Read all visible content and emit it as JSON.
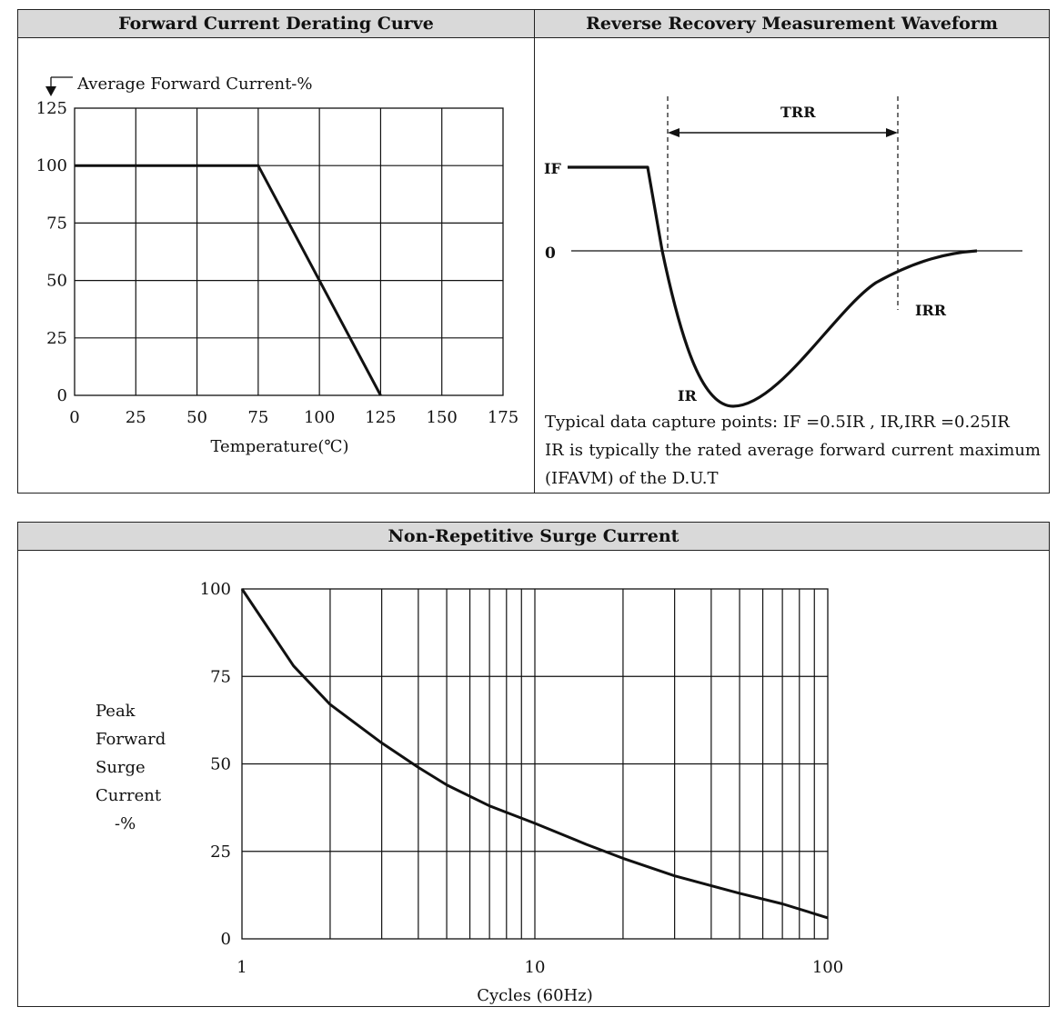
{
  "panels": {
    "derating": {
      "title": "Forward Current Derating Curve"
    },
    "waveform": {
      "title": "Reverse Recovery Measurement Waveform"
    },
    "surge": {
      "title": "Non-Repetitive Surge Current"
    }
  },
  "waveform": {
    "labels": {
      "trr": "TRR",
      "if": "IF",
      "zero": "0",
      "irr": "IRR",
      "ir": "IR"
    },
    "caption_lines": [
      "Typical data capture points: IF =0.5IR , IR,IRR =0.25IR",
      "IR is typically the rated average forward current maximum",
      "(IFAVM) of the D.U.T"
    ]
  },
  "chart_data": [
    {
      "type": "line",
      "title": "Forward Current Derating Curve",
      "ylabel": "Average Forward Current-%",
      "xlabel": "Temperature(℃)",
      "xlim": [
        0,
        175
      ],
      "ylim": [
        0,
        125
      ],
      "xticks": [
        0,
        25,
        50,
        75,
        100,
        125,
        150,
        175
      ],
      "yticks": [
        0,
        25,
        50,
        75,
        100,
        125
      ],
      "grid": true,
      "series": [
        {
          "x": [
            0,
            75,
            125
          ],
          "y": [
            100,
            100,
            0
          ]
        }
      ]
    },
    {
      "type": "line",
      "title": "Non-Repetitive Surge Current",
      "ylabel_lines": [
        "Peak",
        "Forward",
        "Surge",
        "Current",
        "-%"
      ],
      "xlabel": "Cycles (60Hz)",
      "xscale": "log",
      "xlim": [
        1,
        100
      ],
      "ylim": [
        0,
        100
      ],
      "xticks": [
        1,
        10,
        100
      ],
      "yticks": [
        0,
        25,
        50,
        75,
        100
      ],
      "grid": true,
      "series": [
        {
          "x": [
            1,
            1.5,
            2,
            3,
            4,
            5,
            7,
            10,
            15,
            20,
            30,
            50,
            70,
            100
          ],
          "y": [
            100,
            78,
            67,
            56,
            49,
            44,
            38,
            33,
            27,
            23,
            18,
            13,
            10,
            6
          ]
        }
      ]
    }
  ]
}
